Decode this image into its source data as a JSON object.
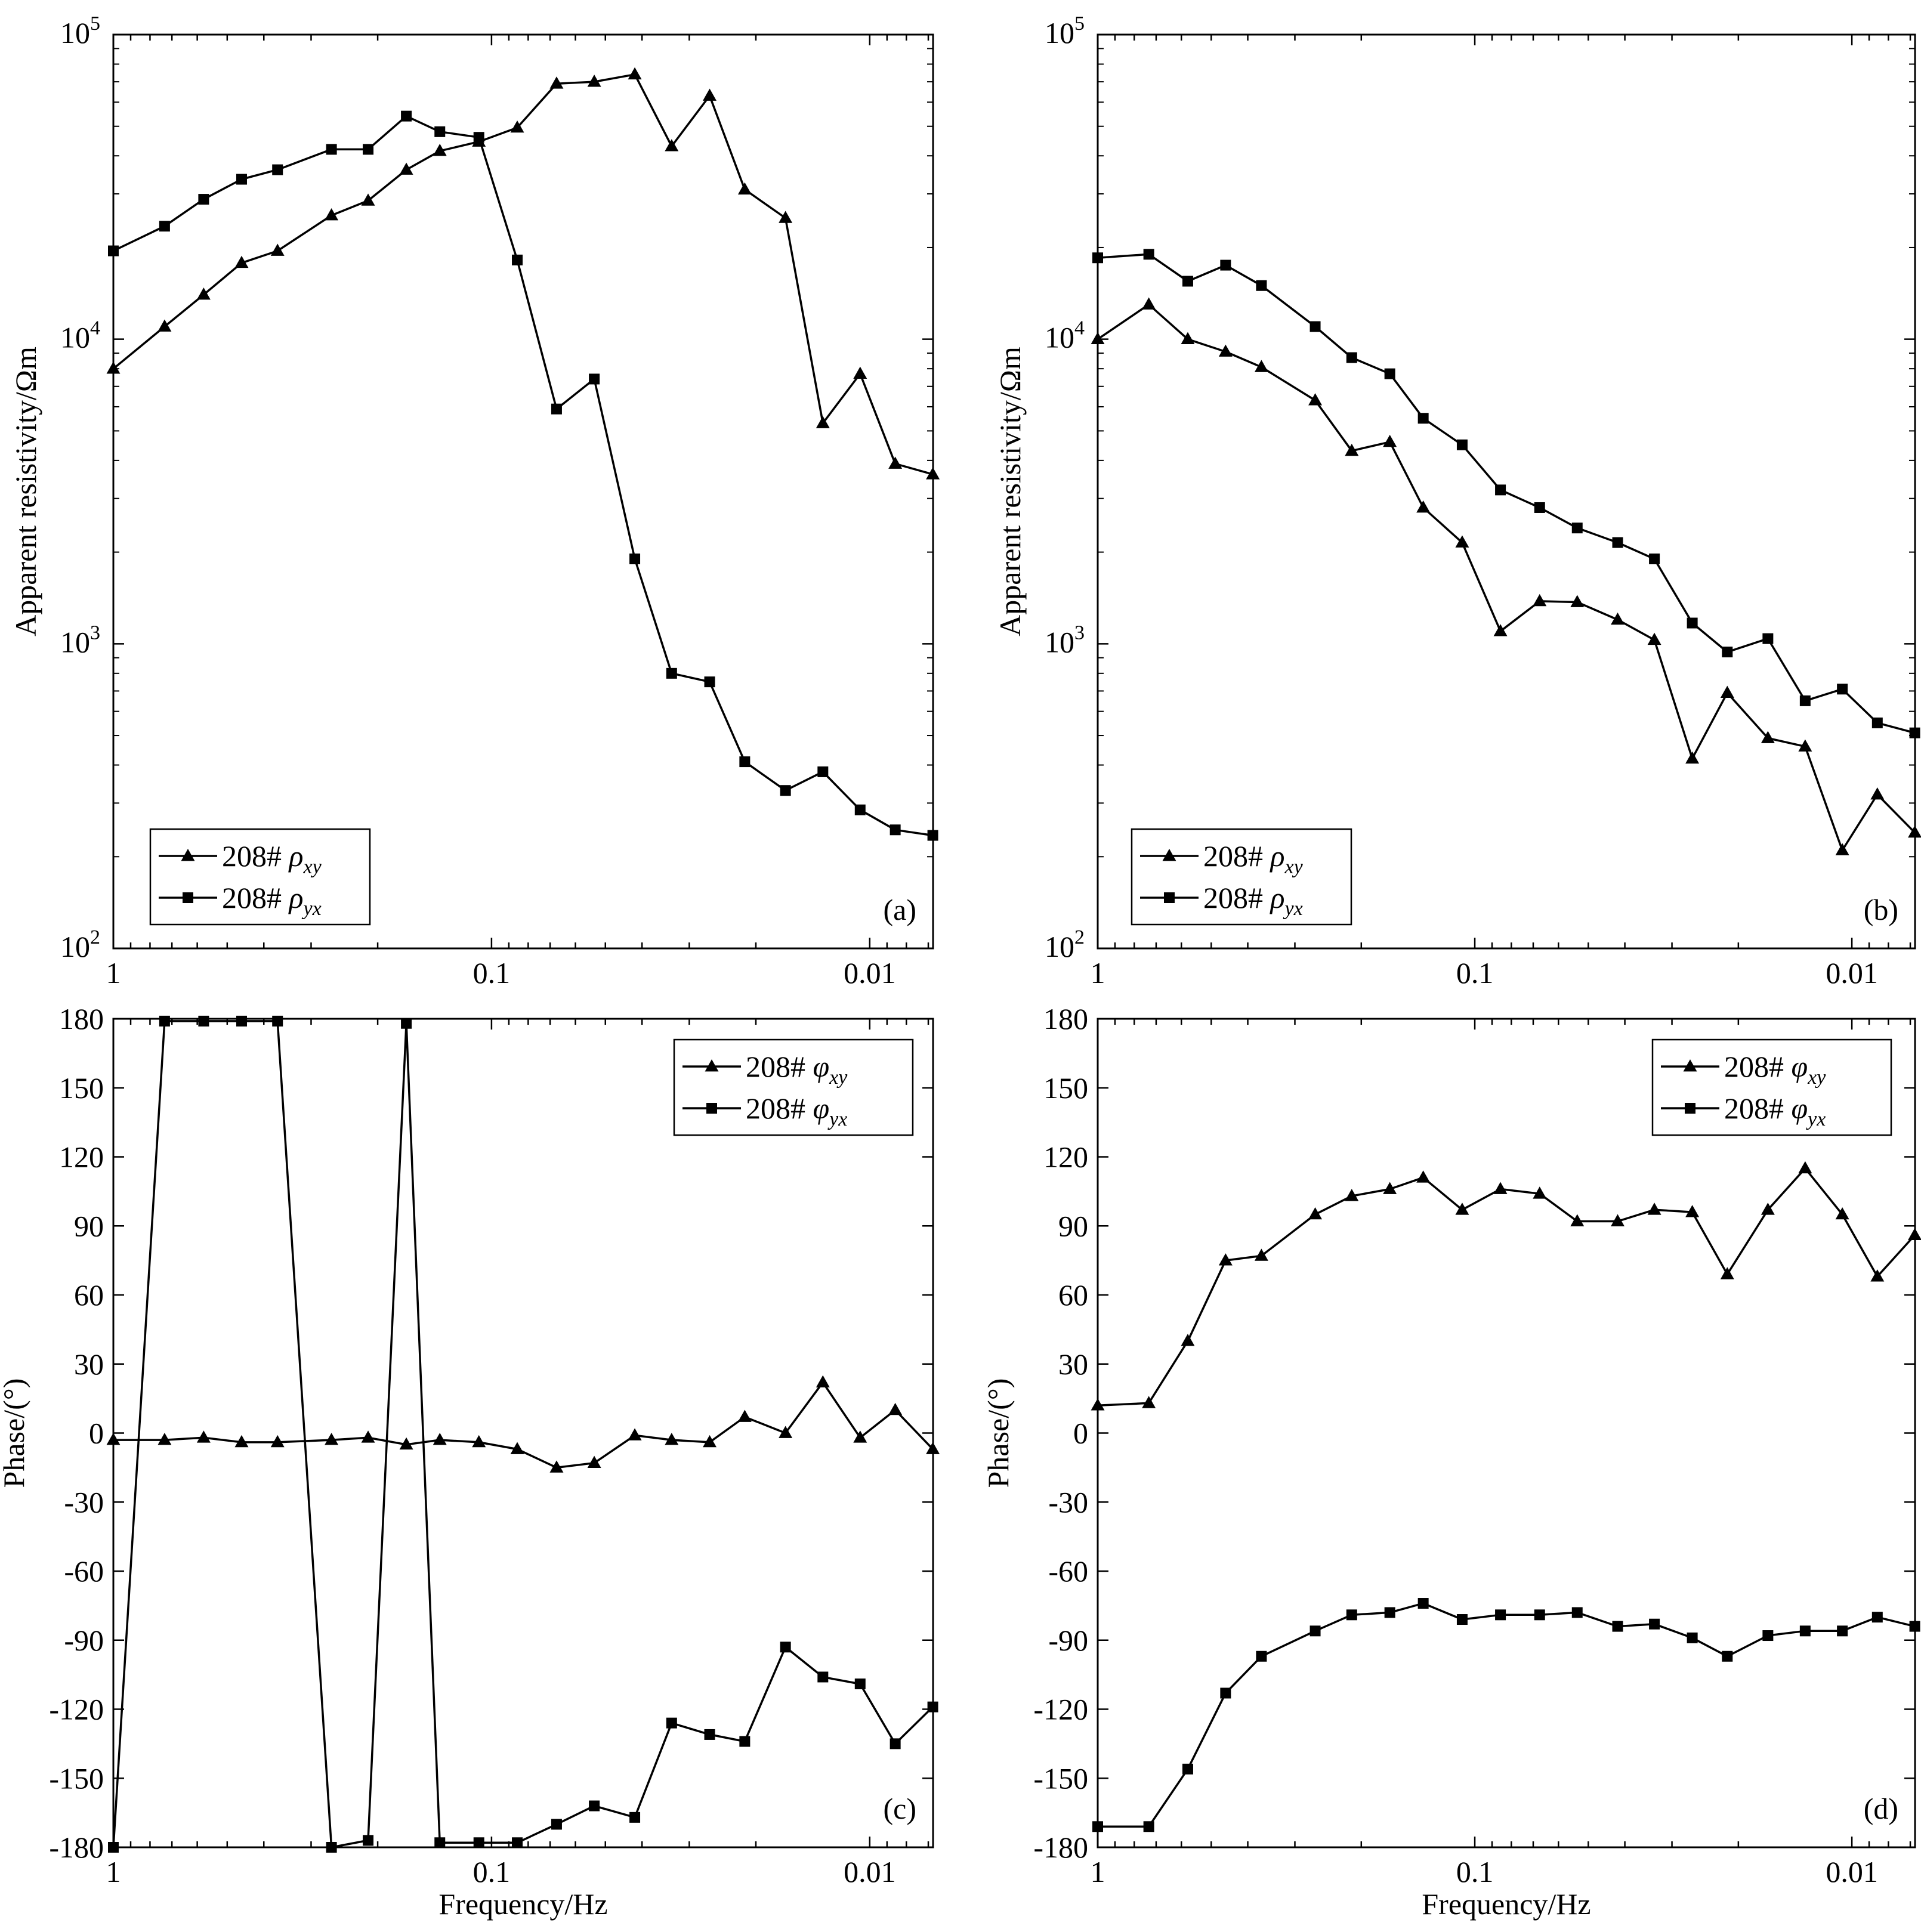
{
  "figure": {
    "x_tick_labels": [
      "1",
      "0.1",
      "0.01"
    ],
    "x_axis_title": "Frequency/Hz",
    "resistivity_y_title": "Apparent resistivity/Ωm",
    "phase_y_title": "Phase/(°)"
  },
  "chart_data": [
    {
      "id": "a",
      "type": "line",
      "panel_label": "(a)",
      "xscale": "log",
      "xlim": [
        1,
        0.0068
      ],
      "yscale": "log",
      "ylim": [
        100,
        100000
      ],
      "yticks": [
        {
          "value": 100,
          "base": "10",
          "exp": "2"
        },
        {
          "value": 1000,
          "base": "10",
          "exp": "3"
        },
        {
          "value": 10000,
          "base": "10",
          "exp": "4"
        },
        {
          "value": 100000,
          "base": "10",
          "exp": "5"
        }
      ],
      "ylabel": "Apparent resistivity/Ωm",
      "xlabel": "",
      "legend_position": "bottom-left",
      "series": [
        {
          "name": "208# ρxy",
          "legend_prefix": "208# ",
          "symbol": "ρ",
          "subscript": "xy",
          "marker": "triangle",
          "x": [
            1,
            0.732,
            0.577,
            0.458,
            0.368,
            0.265,
            0.212,
            0.168,
            0.137,
            0.108,
            0.0855,
            0.0673,
            0.0535,
            0.0418,
            0.0334,
            0.0265,
            0.0214,
            0.0167,
            0.0133,
            0.0106,
            0.00856,
            0.00681
          ],
          "y": [
            8000,
            11000,
            14000,
            17800,
            19500,
            25500,
            28500,
            36000,
            41500,
            44500,
            49500,
            69000,
            70000,
            74000,
            43000,
            63000,
            31000,
            25000,
            5300,
            7700,
            3900,
            3600
          ]
        },
        {
          "name": "208# ρyx",
          "legend_prefix": "208# ",
          "symbol": "ρ",
          "subscript": "yx",
          "marker": "square",
          "x": [
            1,
            0.732,
            0.577,
            0.458,
            0.368,
            0.265,
            0.212,
            0.168,
            0.137,
            0.108,
            0.0855,
            0.0673,
            0.0535,
            0.0418,
            0.0334,
            0.0265,
            0.0214,
            0.0167,
            0.0133,
            0.0106,
            0.00856,
            0.00681
          ],
          "y": [
            19500,
            23500,
            28800,
            33500,
            36000,
            42000,
            42000,
            54000,
            48000,
            46000,
            18200,
            5900,
            7400,
            1900,
            800,
            750,
            410,
            330,
            380,
            285,
            245,
            235
          ]
        }
      ]
    },
    {
      "id": "b",
      "type": "line",
      "panel_label": "(b)",
      "xscale": "log",
      "xlim": [
        1,
        0.0068
      ],
      "yscale": "log",
      "ylim": [
        100,
        100000
      ],
      "yticks": [
        {
          "value": 100,
          "base": "10",
          "exp": "2"
        },
        {
          "value": 1000,
          "base": "10",
          "exp": "3"
        },
        {
          "value": 10000,
          "base": "10",
          "exp": "4"
        },
        {
          "value": 100000,
          "base": "10",
          "exp": "5"
        }
      ],
      "ylabel": "Apparent resistivity/Ωm",
      "xlabel": "",
      "legend_position": "bottom-left",
      "series": [
        {
          "name": "208# ρxy",
          "legend_prefix": "208# ",
          "symbol": "ρ",
          "subscript": "xy",
          "marker": "triangle",
          "x": [
            1,
            0.732,
            0.577,
            0.458,
            0.368,
            0.265,
            0.212,
            0.168,
            0.137,
            0.108,
            0.0855,
            0.0673,
            0.0535,
            0.0418,
            0.0334,
            0.0265,
            0.0214,
            0.0167,
            0.0133,
            0.0106,
            0.00856,
            0.00681
          ],
          "y": [
            10000,
            13000,
            10000,
            9100,
            8100,
            6300,
            4300,
            4600,
            2800,
            2150,
            1100,
            1380,
            1370,
            1200,
            1030,
            420,
            690,
            490,
            460,
            210,
            320,
            240
          ]
        },
        {
          "name": "208# ρyx",
          "legend_prefix": "208# ",
          "symbol": "ρ",
          "subscript": "yx",
          "marker": "square",
          "x": [
            1,
            0.732,
            0.577,
            0.458,
            0.368,
            0.265,
            0.212,
            0.168,
            0.137,
            0.108,
            0.0855,
            0.0673,
            0.0535,
            0.0418,
            0.0334,
            0.0265,
            0.0214,
            0.0167,
            0.0133,
            0.0106,
            0.00856,
            0.00681
          ],
          "y": [
            18500,
            19000,
            15500,
            17500,
            15000,
            11000,
            8700,
            7700,
            5500,
            4500,
            3200,
            2800,
            2400,
            2150,
            1900,
            1170,
            940,
            1040,
            650,
            710,
            550,
            510
          ]
        }
      ]
    },
    {
      "id": "c",
      "type": "line",
      "panel_label": "(c)",
      "xscale": "log",
      "xlim": [
        1,
        0.0068
      ],
      "yscale": "linear",
      "ylim": [
        -180,
        180
      ],
      "yticks": [
        {
          "value": 180,
          "label": "180"
        },
        {
          "value": 150,
          "label": "150"
        },
        {
          "value": 120,
          "label": "120"
        },
        {
          "value": 90,
          "label": "90"
        },
        {
          "value": 60,
          "label": "60"
        },
        {
          "value": 30,
          "label": "30"
        },
        {
          "value": 0,
          "label": "0"
        },
        {
          "value": -30,
          "label": "-30"
        },
        {
          "value": -60,
          "label": "-60"
        },
        {
          "value": -90,
          "label": "-90"
        },
        {
          "value": -120,
          "label": "-120"
        },
        {
          "value": -150,
          "label": "-150"
        },
        {
          "value": -180,
          "label": "-180"
        }
      ],
      "ylabel": "Phase/(°)",
      "xlabel": "Frequency/Hz",
      "legend_position": "top-right",
      "series": [
        {
          "name": "208# φxy",
          "legend_prefix": "208# ",
          "symbol": "φ",
          "subscript": "xy",
          "marker": "triangle",
          "x": [
            1,
            0.732,
            0.577,
            0.458,
            0.368,
            0.265,
            0.212,
            0.168,
            0.137,
            0.108,
            0.0855,
            0.0673,
            0.0535,
            0.0418,
            0.0334,
            0.0265,
            0.0214,
            0.0167,
            0.0133,
            0.0106,
            0.00856,
            0.00681
          ],
          "y": [
            -3,
            -3,
            -2,
            -4,
            -4,
            -3,
            -2,
            -5,
            -3,
            -4,
            -7,
            -15,
            -13,
            -1,
            -3,
            -4,
            7,
            0,
            22,
            -2,
            10,
            -7
          ]
        },
        {
          "name": "208# φyx",
          "legend_prefix": "208# ",
          "symbol": "φ",
          "subscript": "yx",
          "marker": "square",
          "x": [
            1,
            0.732,
            0.577,
            0.458,
            0.368,
            0.265,
            0.212,
            0.168,
            0.137,
            0.108,
            0.0855,
            0.0673,
            0.0535,
            0.0418,
            0.0334,
            0.0265,
            0.0214,
            0.0167,
            0.0133,
            0.0106,
            0.00856,
            0.00681
          ],
          "y": [
            -180,
            179,
            179,
            179,
            179,
            -180,
            -177,
            178,
            -178,
            -178,
            -178,
            -170,
            -162,
            -167,
            -126,
            -131,
            -134,
            -93,
            -106,
            -109,
            -135,
            -119
          ]
        }
      ]
    },
    {
      "id": "d",
      "type": "line",
      "panel_label": "(d)",
      "xscale": "log",
      "xlim": [
        1,
        0.0068
      ],
      "yscale": "linear",
      "ylim": [
        -180,
        180
      ],
      "yticks": [
        {
          "value": 180,
          "label": "180"
        },
        {
          "value": 150,
          "label": "150"
        },
        {
          "value": 120,
          "label": "120"
        },
        {
          "value": 90,
          "label": "90"
        },
        {
          "value": 60,
          "label": "60"
        },
        {
          "value": 30,
          "label": "30"
        },
        {
          "value": 0,
          "label": "0"
        },
        {
          "value": -30,
          "label": "-30"
        },
        {
          "value": -60,
          "label": "-60"
        },
        {
          "value": -90,
          "label": "-90"
        },
        {
          "value": -120,
          "label": "-120"
        },
        {
          "value": -150,
          "label": "-150"
        },
        {
          "value": -180,
          "label": "-180"
        }
      ],
      "ylabel": "Phase/(°)",
      "xlabel": "Frequency/Hz",
      "legend_position": "top-right",
      "series": [
        {
          "name": "208# φxy",
          "legend_prefix": "208# ",
          "symbol": "φ",
          "subscript": "xy",
          "marker": "triangle",
          "x": [
            1,
            0.732,
            0.577,
            0.458,
            0.368,
            0.265,
            0.212,
            0.168,
            0.137,
            0.108,
            0.0855,
            0.0673,
            0.0535,
            0.0418,
            0.0334,
            0.0265,
            0.0214,
            0.0167,
            0.0133,
            0.0106,
            0.00856,
            0.00681
          ],
          "y": [
            12,
            13,
            40,
            75,
            77,
            95,
            103,
            106,
            111,
            97,
            106,
            104,
            92,
            92,
            97,
            96,
            69,
            97,
            115,
            95,
            68,
            86
          ]
        },
        {
          "name": "208# φyx",
          "legend_prefix": "208# ",
          "symbol": "φ",
          "subscript": "yx",
          "marker": "square",
          "x": [
            1,
            0.732,
            0.577,
            0.458,
            0.368,
            0.265,
            0.212,
            0.168,
            0.137,
            0.108,
            0.0855,
            0.0673,
            0.0535,
            0.0418,
            0.0334,
            0.0265,
            0.0214,
            0.0167,
            0.0133,
            0.0106,
            0.00856,
            0.00681
          ],
          "y": [
            -171,
            -171,
            -146,
            -113,
            -97,
            -86,
            -79,
            -78,
            -74,
            -81,
            -79,
            -79,
            -78,
            -84,
            -83,
            -89,
            -97,
            -88,
            -86,
            -86,
            -80,
            -84
          ]
        }
      ]
    }
  ]
}
